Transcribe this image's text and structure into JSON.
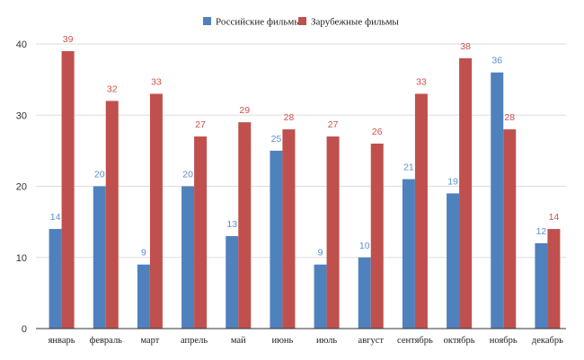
{
  "chart_data": {
    "type": "bar",
    "categories": [
      "январь",
      "февраль",
      "март",
      "апрель",
      "май",
      "июнь",
      "июль",
      "август",
      "сентябрь",
      "октябрь",
      "ноябрь",
      "декабрь"
    ],
    "series": [
      {
        "name": "Российские фильмы",
        "color": "#4f81bd",
        "label_color": "#5b8fd0",
        "values": [
          14,
          20,
          9,
          20,
          13,
          25,
          9,
          10,
          21,
          19,
          36,
          12
        ]
      },
      {
        "name": "Зарубежные фильмы",
        "color": "#c0504d",
        "label_color": "#d0514a",
        "values": [
          39,
          32,
          33,
          27,
          29,
          28,
          27,
          26,
          33,
          38,
          28,
          14
        ]
      }
    ],
    "yticks": [
      0,
      10,
      20,
      30,
      40
    ],
    "ylim": [
      0,
      40
    ],
    "title": "",
    "xlabel": "",
    "ylabel": "",
    "legend_position": "top-center",
    "grid": true
  }
}
